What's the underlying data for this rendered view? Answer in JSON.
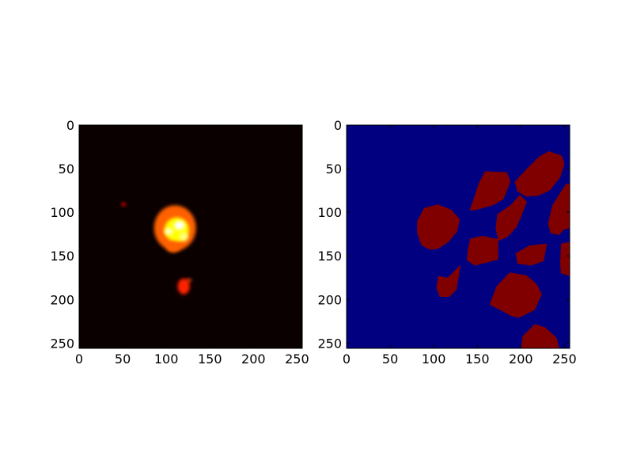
{
  "figure": {
    "background": "#ffffff"
  },
  "chart_data": [
    {
      "type": "heatmap",
      "colormap": "hot",
      "background_color": "#0a0000",
      "xlim": [
        0,
        256
      ],
      "ylim": [
        256,
        0
      ],
      "y_inverted": true,
      "grid": false,
      "x_ticks": [
        0,
        50,
        100,
        150,
        200,
        250
      ],
      "y_ticks": [
        0,
        50,
        100,
        150,
        200,
        250
      ],
      "x_tick_labels": [
        "0",
        "50",
        "100",
        "150",
        "200",
        "250"
      ],
      "y_tick_labels": [
        "0",
        "50",
        "100",
        "150",
        "200",
        "250"
      ],
      "hotspots": [
        {
          "x": 110,
          "y": 118,
          "rx": 24,
          "ry": 26,
          "intensity": 0.55
        },
        {
          "x": 112,
          "y": 120,
          "rx": 14,
          "ry": 14,
          "intensity": 0.8
        },
        {
          "x": 115,
          "y": 115,
          "rx": 6,
          "ry": 5,
          "intensity": 1.0
        },
        {
          "x": 103,
          "y": 122,
          "rx": 5,
          "ry": 4,
          "intensity": 0.95
        },
        {
          "x": 120,
          "y": 128,
          "rx": 5,
          "ry": 5,
          "intensity": 0.9
        },
        {
          "x": 108,
          "y": 140,
          "rx": 8,
          "ry": 6,
          "intensity": 0.55
        },
        {
          "x": 120,
          "y": 185,
          "rx": 7,
          "ry": 9,
          "intensity": 0.45
        },
        {
          "x": 126,
          "y": 178,
          "rx": 3,
          "ry": 2,
          "intensity": 0.5
        },
        {
          "x": 51,
          "y": 91,
          "rx": 3,
          "ry": 2,
          "intensity": 0.35
        }
      ]
    },
    {
      "type": "heatmap",
      "colormap": "jet",
      "background_color": "#000080",
      "region_color": "#800000",
      "xlim": [
        0,
        256
      ],
      "ylim": [
        256,
        0
      ],
      "y_inverted": true,
      "grid": false,
      "x_ticks": [
        0,
        50,
        100,
        150,
        200,
        250
      ],
      "y_ticks": [
        0,
        50,
        100,
        150,
        200,
        250
      ],
      "x_tick_labels": [
        "0",
        "50",
        "100",
        "150",
        "200",
        "250"
      ],
      "y_tick_labels": [
        "0",
        "50",
        "100",
        "150",
        "200",
        "250"
      ],
      "regions": [
        [
          [
            81,
            110
          ],
          [
            89,
            95
          ],
          [
            105,
            91
          ],
          [
            120,
            97
          ],
          [
            130,
            108
          ],
          [
            127,
            122
          ],
          [
            117,
            134
          ],
          [
            105,
            142
          ],
          [
            96,
            143
          ],
          [
            86,
            138
          ],
          [
            81,
            124
          ]
        ],
        [
          [
            232,
            30
          ],
          [
            247,
            35
          ],
          [
            250,
            45
          ],
          [
            245,
            60
          ],
          [
            233,
            75
          ],
          [
            220,
            81
          ],
          [
            206,
            82
          ],
          [
            196,
            76
          ],
          [
            193,
            65
          ],
          [
            205,
            52
          ],
          [
            221,
            36
          ]
        ],
        [
          [
            159,
            53
          ],
          [
            184,
            54
          ],
          [
            188,
            65
          ],
          [
            180,
            85
          ],
          [
            168,
            92
          ],
          [
            150,
            97
          ],
          [
            141,
            98
          ],
          [
            146,
            84
          ],
          [
            152,
            66
          ]
        ],
        [
          [
            199,
            80
          ],
          [
            207,
            88
          ],
          [
            201,
            103
          ],
          [
            195,
            117
          ],
          [
            185,
            128
          ],
          [
            174,
            133
          ],
          [
            171,
            118
          ],
          [
            173,
            102
          ],
          [
            188,
            92
          ]
        ],
        [
          [
            252,
            67
          ],
          [
            256,
            68
          ],
          [
            256,
            118
          ],
          [
            249,
            120
          ],
          [
            244,
            126
          ],
          [
            234,
            124
          ],
          [
            231,
            113
          ],
          [
            236,
            92
          ]
        ],
        [
          [
            142,
            130
          ],
          [
            156,
            127
          ],
          [
            174,
            131
          ],
          [
            174,
            154
          ],
          [
            160,
            158
          ],
          [
            147,
            161
          ],
          [
            138,
            155
          ],
          [
            139,
            143
          ]
        ],
        [
          [
            230,
            136
          ],
          [
            226,
            156
          ],
          [
            212,
            161
          ],
          [
            196,
            159
          ],
          [
            194,
            147
          ],
          [
            210,
            138
          ]
        ],
        [
          [
            131,
            160
          ],
          [
            128,
            178
          ],
          [
            126,
            189
          ],
          [
            118,
            197
          ],
          [
            107,
            197
          ],
          [
            103,
            187
          ],
          [
            105,
            173
          ],
          [
            116,
            175
          ]
        ],
        [
          [
            256,
            134
          ],
          [
            256,
            173
          ],
          [
            246,
            170
          ],
          [
            245,
            159
          ],
          [
            246,
            136
          ]
        ],
        [
          [
            187,
            169
          ],
          [
            206,
            172
          ],
          [
            218,
            182
          ],
          [
            224,
            194
          ],
          [
            216,
            212
          ],
          [
            198,
            221
          ],
          [
            189,
            219
          ],
          [
            176,
            212
          ],
          [
            164,
            206
          ],
          [
            172,
            185
          ]
        ],
        [
          [
            216,
            228
          ],
          [
            228,
            232
          ],
          [
            241,
            244
          ],
          [
            244,
            256
          ],
          [
            200,
            256
          ],
          [
            202,
            242
          ]
        ]
      ]
    }
  ]
}
